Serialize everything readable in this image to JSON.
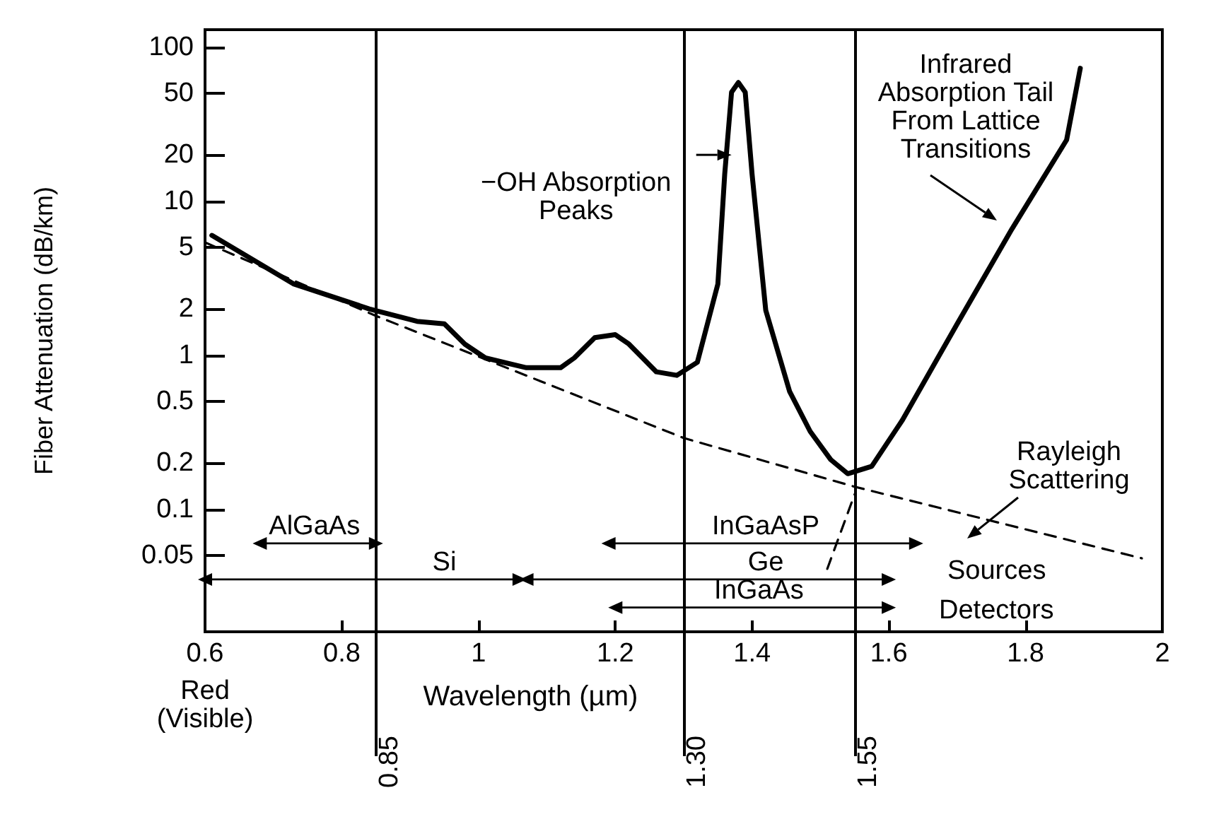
{
  "chart_data": {
    "type": "line",
    "xlabel": "Wavelength (µm)",
    "ylabel": "Fiber Attenuation (dB/km)",
    "log": "y",
    "grid": false,
    "xlim": [
      0.6,
      2.0
    ],
    "xticks": [
      0.6,
      0.8,
      1.0,
      1.2,
      1.4,
      1.6,
      1.8,
      2.0
    ],
    "ylim": [
      0.016,
      130
    ],
    "yticks": [
      0.05,
      0.1,
      0.2,
      0.5,
      1,
      2,
      5,
      10,
      20,
      50,
      100
    ],
    "series": [
      {
        "color": "#000000",
        "x": [
          0.61,
          0.73,
          0.84,
          0.91,
          0.95,
          0.98,
          1.01,
          1.07,
          1.12,
          1.14,
          1.17,
          1.2,
          1.22,
          1.26,
          1.29,
          1.32,
          1.35,
          1.36,
          1.37,
          1.38,
          1.39,
          1.4,
          1.42,
          1.455,
          1.485,
          1.515,
          1.54,
          1.575,
          1.62,
          1.7,
          1.78,
          1.86,
          1.88
        ],
        "values": [
          6.0,
          2.9,
          2.0,
          1.66,
          1.6,
          1.18,
          0.96,
          0.83,
          0.83,
          0.96,
          1.3,
          1.36,
          1.18,
          0.78,
          0.74,
          0.9,
          2.9,
          15,
          51,
          59,
          51,
          15,
          1.96,
          0.58,
          0.32,
          0.21,
          0.17,
          0.19,
          0.38,
          1.6,
          6.6,
          25,
          73
        ]
      },
      {
        "color": "#000000",
        "line_style": "dashed",
        "x": [
          0.6,
          0.85,
          1.3,
          1.55,
          1.97
        ],
        "values": [
          5.4,
          1.8,
          0.29,
          0.14,
          0.048
        ]
      },
      {
        "color": "#000000",
        "line_style": "dashed",
        "x": [
          1.51,
          1.55
        ],
        "values": [
          0.041,
          0.125
        ]
      },
      {
        "color": "#000000",
        "marker": "triangle",
        "x": [
          0.68,
          0.85
        ],
        "values": [
          0.06,
          0.06
        ]
      },
      {
        "color": "#000000",
        "marker": "triangle",
        "x": [
          1.19,
          1.64
        ],
        "values": [
          0.06,
          0.06
        ]
      },
      {
        "color": "#000000",
        "marker": "triangle",
        "x": [
          0.6,
          1.06
        ],
        "values": [
          0.035,
          0.035
        ]
      },
      {
        "color": "#000000",
        "marker": "triangle",
        "x": [
          1.07,
          1.6
        ],
        "values": [
          0.035,
          0.035
        ]
      },
      {
        "color": "#000000",
        "marker": "triangle",
        "x": [
          1.2,
          1.6
        ],
        "values": [
          0.023,
          0.023
        ]
      }
    ],
    "ref_lines": [
      {
        "axis": "x",
        "value": 0.85,
        "label": "0.85"
      },
      {
        "axis": "x",
        "value": 1.3,
        "label": "1.30"
      },
      {
        "axis": "x",
        "value": 1.55,
        "label": "1.55"
      }
    ],
    "annotations": [
      {
        "text": "−OH Absorption\nPeaks",
        "x": 1.37,
        "y": 20
      },
      "Infrared\nAbsorption Tail\nFrom Lattice\nTransitions",
      "Rayleigh\nScattering",
      "Sources",
      "Detectors",
      "Red\n(Visible)",
      {
        "text": "AlGaAs",
        "x": 0.76,
        "y": 0.06
      },
      {
        "text": "InGaAsP",
        "x": 1.42,
        "y": 0.06
      },
      {
        "text": "Si",
        "x": 0.95,
        "y": 0.035
      },
      {
        "text": "Ge",
        "x": 1.42,
        "y": 0.035
      },
      {
        "text": "InGaAs",
        "x": 1.41,
        "y": 0.023
      }
    ]
  }
}
